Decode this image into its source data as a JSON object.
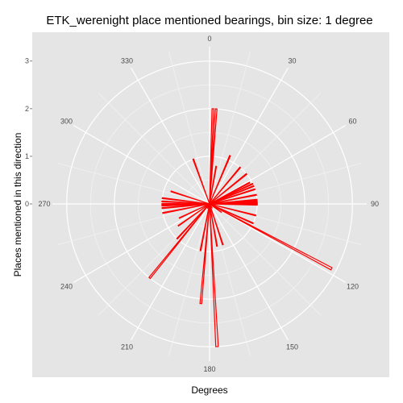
{
  "chart_data": {
    "type": "bar",
    "coord": "polar",
    "title": "ETK_werenight place mentioned bearings, bin size: 1 degree",
    "xlabel": "Degrees",
    "ylabel": "Places mentioned in this direction",
    "angle_ticks": [
      "0",
      "30",
      "60",
      "90",
      "120",
      "150",
      "180",
      "210",
      "240",
      "270",
      "300",
      "330"
    ],
    "radius_ticks": [
      "0",
      "1",
      "2",
      "3"
    ],
    "rlim": [
      0,
      3.3
    ],
    "grid": true,
    "panel_color": "#e5e5e5",
    "grid_color": "#ffffff",
    "bar_color": "#ff0000",
    "bearings": [
      2,
      4,
      10,
      23,
      40,
      51,
      59,
      62,
      65,
      68,
      72,
      79,
      85,
      87,
      88,
      89,
      90,
      91,
      104,
      114,
      118,
      121,
      125,
      148,
      162,
      170,
      177,
      185,
      191,
      205,
      219,
      223,
      235,
      245,
      259,
      265,
      268,
      270,
      273,
      277,
      288,
      340
    ],
    "values": [
      2.0,
      2.0,
      0.8,
      1.1,
      1.0,
      1.0,
      0.1,
      0.95,
      1.0,
      1.0,
      1.0,
      1.0,
      1.0,
      1.0,
      1.0,
      1.0,
      1.0,
      1.0,
      1.0,
      1.0,
      2.9,
      0.2,
      0.3,
      0.1,
      0.9,
      0.9,
      3.0,
      2.1,
      1.0,
      0.1,
      2.0,
      1.0,
      0.8,
      0.7,
      1.0,
      1.0,
      1.0,
      1.0,
      1.0,
      1.0,
      0.85,
      1.0
    ]
  }
}
